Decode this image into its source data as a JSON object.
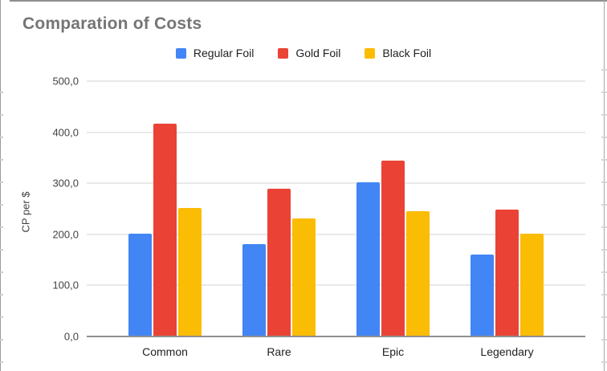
{
  "chart_data": {
    "type": "bar",
    "title": "Comparation of Costs",
    "xlabel": "",
    "ylabel": "CP per $",
    "categories": [
      "Common",
      "Rare",
      "Epic",
      "Legendary"
    ],
    "series": [
      {
        "name": "Regular Foil",
        "color": "#4285F4",
        "values": [
          201,
          181,
          302,
          161
        ]
      },
      {
        "name": "Gold Foil",
        "color": "#EA4335",
        "values": [
          417,
          289,
          344,
          249
        ]
      },
      {
        "name": "Black Foil",
        "color": "#FBBC04",
        "values": [
          252,
          231,
          246,
          201
        ]
      }
    ],
    "ylim": [
      0,
      500
    ],
    "y_ticks": [
      0,
      100,
      200,
      300,
      400,
      500
    ],
    "y_tick_labels": [
      "0,0",
      "100,0",
      "200,0",
      "300,0",
      "400,0",
      "500,0"
    ],
    "grid": true,
    "legend_position": "top",
    "title_color": "#757575",
    "gridline_color": "#e9e9e9",
    "axis_line_color": "#8f8f8f"
  }
}
